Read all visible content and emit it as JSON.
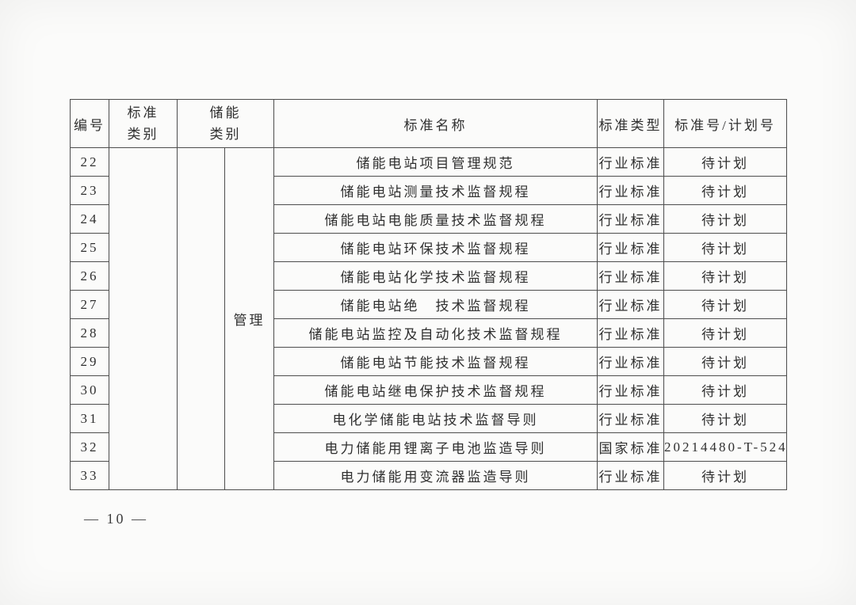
{
  "page": {
    "number_label": "— 10 —"
  },
  "table": {
    "headers": {
      "col_id": "编号",
      "col_category_line1": "标准",
      "col_category_line2": "类别",
      "col_storage_line1": "储能",
      "col_storage_line2": "类别",
      "col_name": "标准名称",
      "col_type": "标准类型",
      "col_number": "标准号/计划号"
    },
    "merged": {
      "standard_category": "",
      "storage_category_left": "",
      "storage_category_right": "管理"
    },
    "rows": [
      {
        "id": "22",
        "name": "储能电站项目管理规范",
        "type": "行业标准",
        "number": "待计划"
      },
      {
        "id": "23",
        "name": "储能电站测量技术监督规程",
        "type": "行业标准",
        "number": "待计划"
      },
      {
        "id": "24",
        "name": "储能电站电能质量技术监督规程",
        "type": "行业标准",
        "number": "待计划"
      },
      {
        "id": "25",
        "name": "储能电站环保技术监督规程",
        "type": "行业标准",
        "number": "待计划"
      },
      {
        "id": "26",
        "name": "储能电站化学技术监督规程",
        "type": "行业标准",
        "number": "待计划"
      },
      {
        "id": "27",
        "name": "储能电站绝　技术监督规程",
        "type": "行业标准",
        "number": "待计划"
      },
      {
        "id": "28",
        "name": "储能电站监控及自动化技术监督规程",
        "type": "行业标准",
        "number": "待计划"
      },
      {
        "id": "29",
        "name": "储能电站节能技术监督规程",
        "type": "行业标准",
        "number": "待计划"
      },
      {
        "id": "30",
        "name": "储能电站继电保护技术监督规程",
        "type": "行业标准",
        "number": "待计划"
      },
      {
        "id": "31",
        "name": "电化学储能电站技术监督导则",
        "type": "行业标准",
        "number": "待计划"
      },
      {
        "id": "32",
        "name": "电力储能用锂离子电池监造导则",
        "type": "国家标准",
        "number": "20214480-T-524"
      },
      {
        "id": "33",
        "name": "电力储能用变流器监造导则",
        "type": "行业标准",
        "number": "待计划"
      }
    ]
  }
}
